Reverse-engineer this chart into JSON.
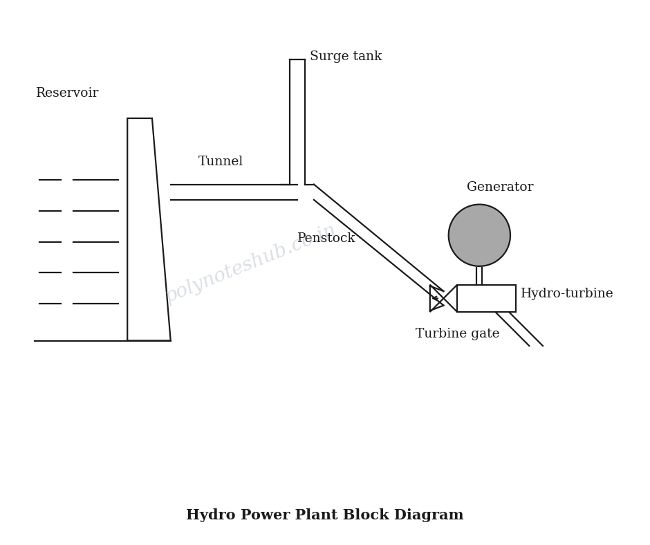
{
  "title": "Hydro Power Plant Block Diagram",
  "title_fontsize": 15,
  "title_fontweight": "bold",
  "bg_color": "#ffffff",
  "line_color": "#1a1a1a",
  "line_width": 1.6,
  "generator_color": "#a8a8a8",
  "watermark_text": "polynoteshub.co.in",
  "watermark_color": "#b0b8c8",
  "watermark_alpha": 0.45,
  "labels": {
    "reservoir": "Reservoir",
    "tunnel": "Tunnel",
    "surge_tank": "Surge tank",
    "penstock": "Penstock",
    "generator": "Generator",
    "hydro_turbine": "Hydro-turbine",
    "turbine_gate": "Turbine gate"
  },
  "label_fontsize": 13.5
}
